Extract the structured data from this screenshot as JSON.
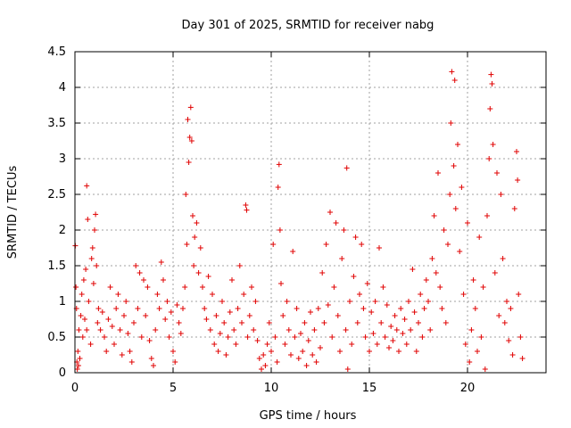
{
  "chart_data": {
    "type": "scatter",
    "title": "Day 301 of 2025, SRMTID for receiver nabg",
    "xlabel": "GPS time / hours",
    "ylabel": "SRMTID / TECUs",
    "xlim": [
      0,
      24
    ],
    "ylim": [
      0,
      4.5
    ],
    "xticks": [
      0,
      5,
      10,
      15,
      20
    ],
    "xtick_labels": [
      "0",
      "5",
      "10",
      "15",
      "20"
    ],
    "yticks": [
      0,
      0.5,
      1,
      1.5,
      2,
      2.5,
      3,
      3.5,
      4,
      4.5
    ],
    "ytick_labels": [
      "0",
      "0.5",
      "1",
      "1.5",
      "2",
      "2.5",
      "3",
      "3.5",
      "4",
      "4.5"
    ],
    "grid": true,
    "marker": "plus",
    "color": "#e00000",
    "series": [
      {
        "name": "SRMTID",
        "points": [
          [
            0.02,
            1.78
          ],
          [
            0.05,
            1.2
          ],
          [
            0.08,
            0.9
          ],
          [
            0.1,
            0.15
          ],
          [
            0.12,
            0.05
          ],
          [
            0.15,
            0.3
          ],
          [
            0.18,
            0.1
          ],
          [
            0.2,
            0.6
          ],
          [
            0.25,
            0.2
          ],
          [
            0.3,
            0.8
          ],
          [
            0.35,
            1.1
          ],
          [
            0.4,
            0.5
          ],
          [
            0.45,
            1.3
          ],
          [
            0.5,
            0.75
          ],
          [
            0.55,
            1.45
          ],
          [
            0.6,
            0.6
          ],
          [
            0.6,
            2.62
          ],
          [
            0.65,
            2.15
          ],
          [
            0.7,
            1.0
          ],
          [
            0.8,
            0.4
          ],
          [
            0.85,
            1.6
          ],
          [
            0.9,
            1.75
          ],
          [
            0.95,
            1.25
          ],
          [
            1.0,
            2.0
          ],
          [
            1.05,
            2.22
          ],
          [
            1.1,
            1.5
          ],
          [
            1.15,
            0.7
          ],
          [
            1.2,
            0.9
          ],
          [
            1.3,
            0.6
          ],
          [
            1.4,
            0.85
          ],
          [
            1.5,
            0.5
          ],
          [
            1.6,
            0.3
          ],
          [
            1.7,
            0.75
          ],
          [
            1.8,
            1.2
          ],
          [
            1.9,
            0.65
          ],
          [
            2.0,
            0.4
          ],
          [
            2.1,
            0.9
          ],
          [
            2.2,
            1.1
          ],
          [
            2.3,
            0.6
          ],
          [
            2.4,
            0.25
          ],
          [
            2.5,
            0.8
          ],
          [
            2.6,
            1.0
          ],
          [
            2.7,
            0.55
          ],
          [
            2.8,
            0.3
          ],
          [
            2.9,
            0.15
          ],
          [
            3.0,
            0.7
          ],
          [
            3.1,
            1.5
          ],
          [
            3.2,
            0.9
          ],
          [
            3.3,
            1.4
          ],
          [
            3.4,
            0.5
          ],
          [
            3.5,
            1.3
          ],
          [
            3.6,
            0.8
          ],
          [
            3.7,
            1.2
          ],
          [
            3.8,
            0.45
          ],
          [
            3.9,
            0.2
          ],
          [
            4.0,
            0.1
          ],
          [
            4.1,
            0.6
          ],
          [
            4.2,
            1.1
          ],
          [
            4.3,
            0.9
          ],
          [
            4.4,
            1.55
          ],
          [
            4.5,
            1.3
          ],
          [
            4.6,
            0.75
          ],
          [
            4.7,
            1.0
          ],
          [
            4.8,
            0.5
          ],
          [
            4.9,
            0.85
          ],
          [
            5.0,
            0.3
          ],
          [
            5.1,
            0.15
          ],
          [
            5.2,
            0.95
          ],
          [
            5.3,
            0.7
          ],
          [
            5.4,
            0.55
          ],
          [
            5.5,
            0.9
          ],
          [
            5.6,
            1.2
          ],
          [
            5.65,
            2.5
          ],
          [
            5.7,
            1.8
          ],
          [
            5.75,
            3.55
          ],
          [
            5.8,
            2.95
          ],
          [
            5.85,
            3.3
          ],
          [
            5.9,
            3.72
          ],
          [
            5.95,
            3.25
          ],
          [
            6.0,
            2.2
          ],
          [
            6.05,
            1.5
          ],
          [
            6.1,
            1.9
          ],
          [
            6.2,
            2.1
          ],
          [
            6.3,
            1.4
          ],
          [
            6.4,
            1.75
          ],
          [
            6.5,
            1.2
          ],
          [
            6.6,
            0.9
          ],
          [
            6.7,
            0.75
          ],
          [
            6.8,
            1.35
          ],
          [
            6.9,
            0.6
          ],
          [
            7.0,
            1.1
          ],
          [
            7.1,
            0.4
          ],
          [
            7.2,
            0.8
          ],
          [
            7.3,
            0.3
          ],
          [
            7.4,
            0.55
          ],
          [
            7.5,
            1.0
          ],
          [
            7.6,
            0.7
          ],
          [
            7.7,
            0.25
          ],
          [
            7.8,
            0.5
          ],
          [
            7.9,
            0.85
          ],
          [
            8.0,
            1.3
          ],
          [
            8.1,
            0.6
          ],
          [
            8.2,
            0.4
          ],
          [
            8.3,
            0.9
          ],
          [
            8.4,
            1.5
          ],
          [
            8.5,
            0.7
          ],
          [
            8.6,
            1.1
          ],
          [
            8.7,
            2.35
          ],
          [
            8.75,
            2.28
          ],
          [
            8.8,
            0.5
          ],
          [
            8.9,
            0.8
          ],
          [
            9.0,
            1.2
          ],
          [
            9.1,
            0.6
          ],
          [
            9.2,
            1.0
          ],
          [
            9.3,
            0.45
          ],
          [
            9.4,
            0.2
          ],
          [
            9.5,
            0.05
          ],
          [
            9.6,
            0.25
          ],
          [
            9.7,
            0.1
          ],
          [
            9.8,
            0.4
          ],
          [
            9.9,
            0.7
          ],
          [
            10.0,
            0.3
          ],
          [
            10.1,
            1.8
          ],
          [
            10.2,
            0.5
          ],
          [
            10.3,
            0.15
          ],
          [
            10.35,
            2.6
          ],
          [
            10.4,
            2.92
          ],
          [
            10.45,
            2.0
          ],
          [
            10.5,
            1.25
          ],
          [
            10.6,
            0.8
          ],
          [
            10.7,
            0.4
          ],
          [
            10.8,
            1.0
          ],
          [
            10.9,
            0.6
          ],
          [
            11.0,
            0.25
          ],
          [
            11.1,
            1.7
          ],
          [
            11.2,
            0.5
          ],
          [
            11.3,
            0.9
          ],
          [
            11.4,
            0.2
          ],
          [
            11.5,
            0.55
          ],
          [
            11.6,
            0.3
          ],
          [
            11.7,
            0.7
          ],
          [
            11.8,
            0.1
          ],
          [
            11.9,
            0.45
          ],
          [
            12.0,
            0.85
          ],
          [
            12.1,
            0.25
          ],
          [
            12.2,
            0.6
          ],
          [
            12.3,
            0.15
          ],
          [
            12.4,
            0.9
          ],
          [
            12.5,
            0.35
          ],
          [
            12.6,
            1.4
          ],
          [
            12.7,
            0.7
          ],
          [
            12.8,
            1.8
          ],
          [
            12.9,
            0.95
          ],
          [
            13.0,
            2.25
          ],
          [
            13.1,
            0.5
          ],
          [
            13.2,
            1.2
          ],
          [
            13.3,
            2.1
          ],
          [
            13.4,
            0.8
          ],
          [
            13.5,
            0.3
          ],
          [
            13.6,
            1.6
          ],
          [
            13.7,
            2.0
          ],
          [
            13.8,
            0.6
          ],
          [
            13.85,
            2.87
          ],
          [
            13.9,
            0.05
          ],
          [
            14.0,
            1.0
          ],
          [
            14.1,
            0.4
          ],
          [
            14.2,
            1.35
          ],
          [
            14.3,
            1.9
          ],
          [
            14.4,
            0.7
          ],
          [
            14.5,
            1.1
          ],
          [
            14.6,
            1.8
          ],
          [
            14.7,
            0.9
          ],
          [
            14.8,
            0.5
          ],
          [
            14.9,
            1.25
          ],
          [
            15.0,
            0.3
          ],
          [
            15.1,
            0.85
          ],
          [
            15.2,
            0.55
          ],
          [
            15.3,
            1.0
          ],
          [
            15.4,
            0.4
          ],
          [
            15.5,
            1.75
          ],
          [
            15.6,
            0.7
          ],
          [
            15.7,
            1.2
          ],
          [
            15.8,
            0.5
          ],
          [
            15.9,
            0.95
          ],
          [
            16.0,
            0.35
          ],
          [
            16.1,
            0.65
          ],
          [
            16.2,
            0.45
          ],
          [
            16.3,
            0.8
          ],
          [
            16.4,
            0.6
          ],
          [
            16.5,
            0.3
          ],
          [
            16.6,
            0.9
          ],
          [
            16.7,
            0.55
          ],
          [
            16.8,
            0.75
          ],
          [
            16.9,
            0.4
          ],
          [
            17.0,
            1.0
          ],
          [
            17.1,
            0.6
          ],
          [
            17.2,
            1.45
          ],
          [
            17.3,
            0.85
          ],
          [
            17.4,
            0.3
          ],
          [
            17.5,
            0.7
          ],
          [
            17.6,
            1.1
          ],
          [
            17.7,
            0.5
          ],
          [
            17.8,
            0.9
          ],
          [
            17.9,
            1.3
          ],
          [
            18.0,
            1.0
          ],
          [
            18.1,
            0.6
          ],
          [
            18.2,
            1.6
          ],
          [
            18.3,
            2.2
          ],
          [
            18.4,
            1.4
          ],
          [
            18.5,
            2.8
          ],
          [
            18.6,
            1.2
          ],
          [
            18.7,
            0.9
          ],
          [
            18.8,
            2.0
          ],
          [
            18.9,
            0.7
          ],
          [
            19.0,
            1.8
          ],
          [
            19.1,
            2.5
          ],
          [
            19.15,
            3.5
          ],
          [
            19.2,
            4.22
          ],
          [
            19.3,
            2.9
          ],
          [
            19.35,
            4.1
          ],
          [
            19.4,
            2.3
          ],
          [
            19.5,
            3.2
          ],
          [
            19.6,
            1.7
          ],
          [
            19.7,
            2.6
          ],
          [
            19.8,
            1.1
          ],
          [
            19.9,
            0.4
          ],
          [
            20.0,
            2.1
          ],
          [
            20.1,
            0.15
          ],
          [
            20.2,
            0.6
          ],
          [
            20.3,
            1.3
          ],
          [
            20.4,
            0.9
          ],
          [
            20.5,
            0.3
          ],
          [
            20.6,
            1.9
          ],
          [
            20.7,
            0.5
          ],
          [
            20.8,
            1.2
          ],
          [
            20.9,
            0.05
          ],
          [
            21.0,
            2.2
          ],
          [
            21.1,
            3.0
          ],
          [
            21.15,
            3.7
          ],
          [
            21.2,
            4.18
          ],
          [
            21.25,
            4.05
          ],
          [
            21.3,
            3.2
          ],
          [
            21.4,
            1.4
          ],
          [
            21.5,
            2.8
          ],
          [
            21.6,
            0.8
          ],
          [
            21.7,
            2.5
          ],
          [
            21.8,
            1.6
          ],
          [
            21.9,
            0.7
          ],
          [
            22.0,
            1.0
          ],
          [
            22.1,
            0.45
          ],
          [
            22.2,
            0.9
          ],
          [
            22.3,
            0.25
          ],
          [
            22.4,
            2.3
          ],
          [
            22.5,
            3.1
          ],
          [
            22.55,
            2.7
          ],
          [
            22.6,
            1.1
          ],
          [
            22.7,
            0.5
          ],
          [
            22.8,
            0.2
          ]
        ]
      }
    ]
  }
}
